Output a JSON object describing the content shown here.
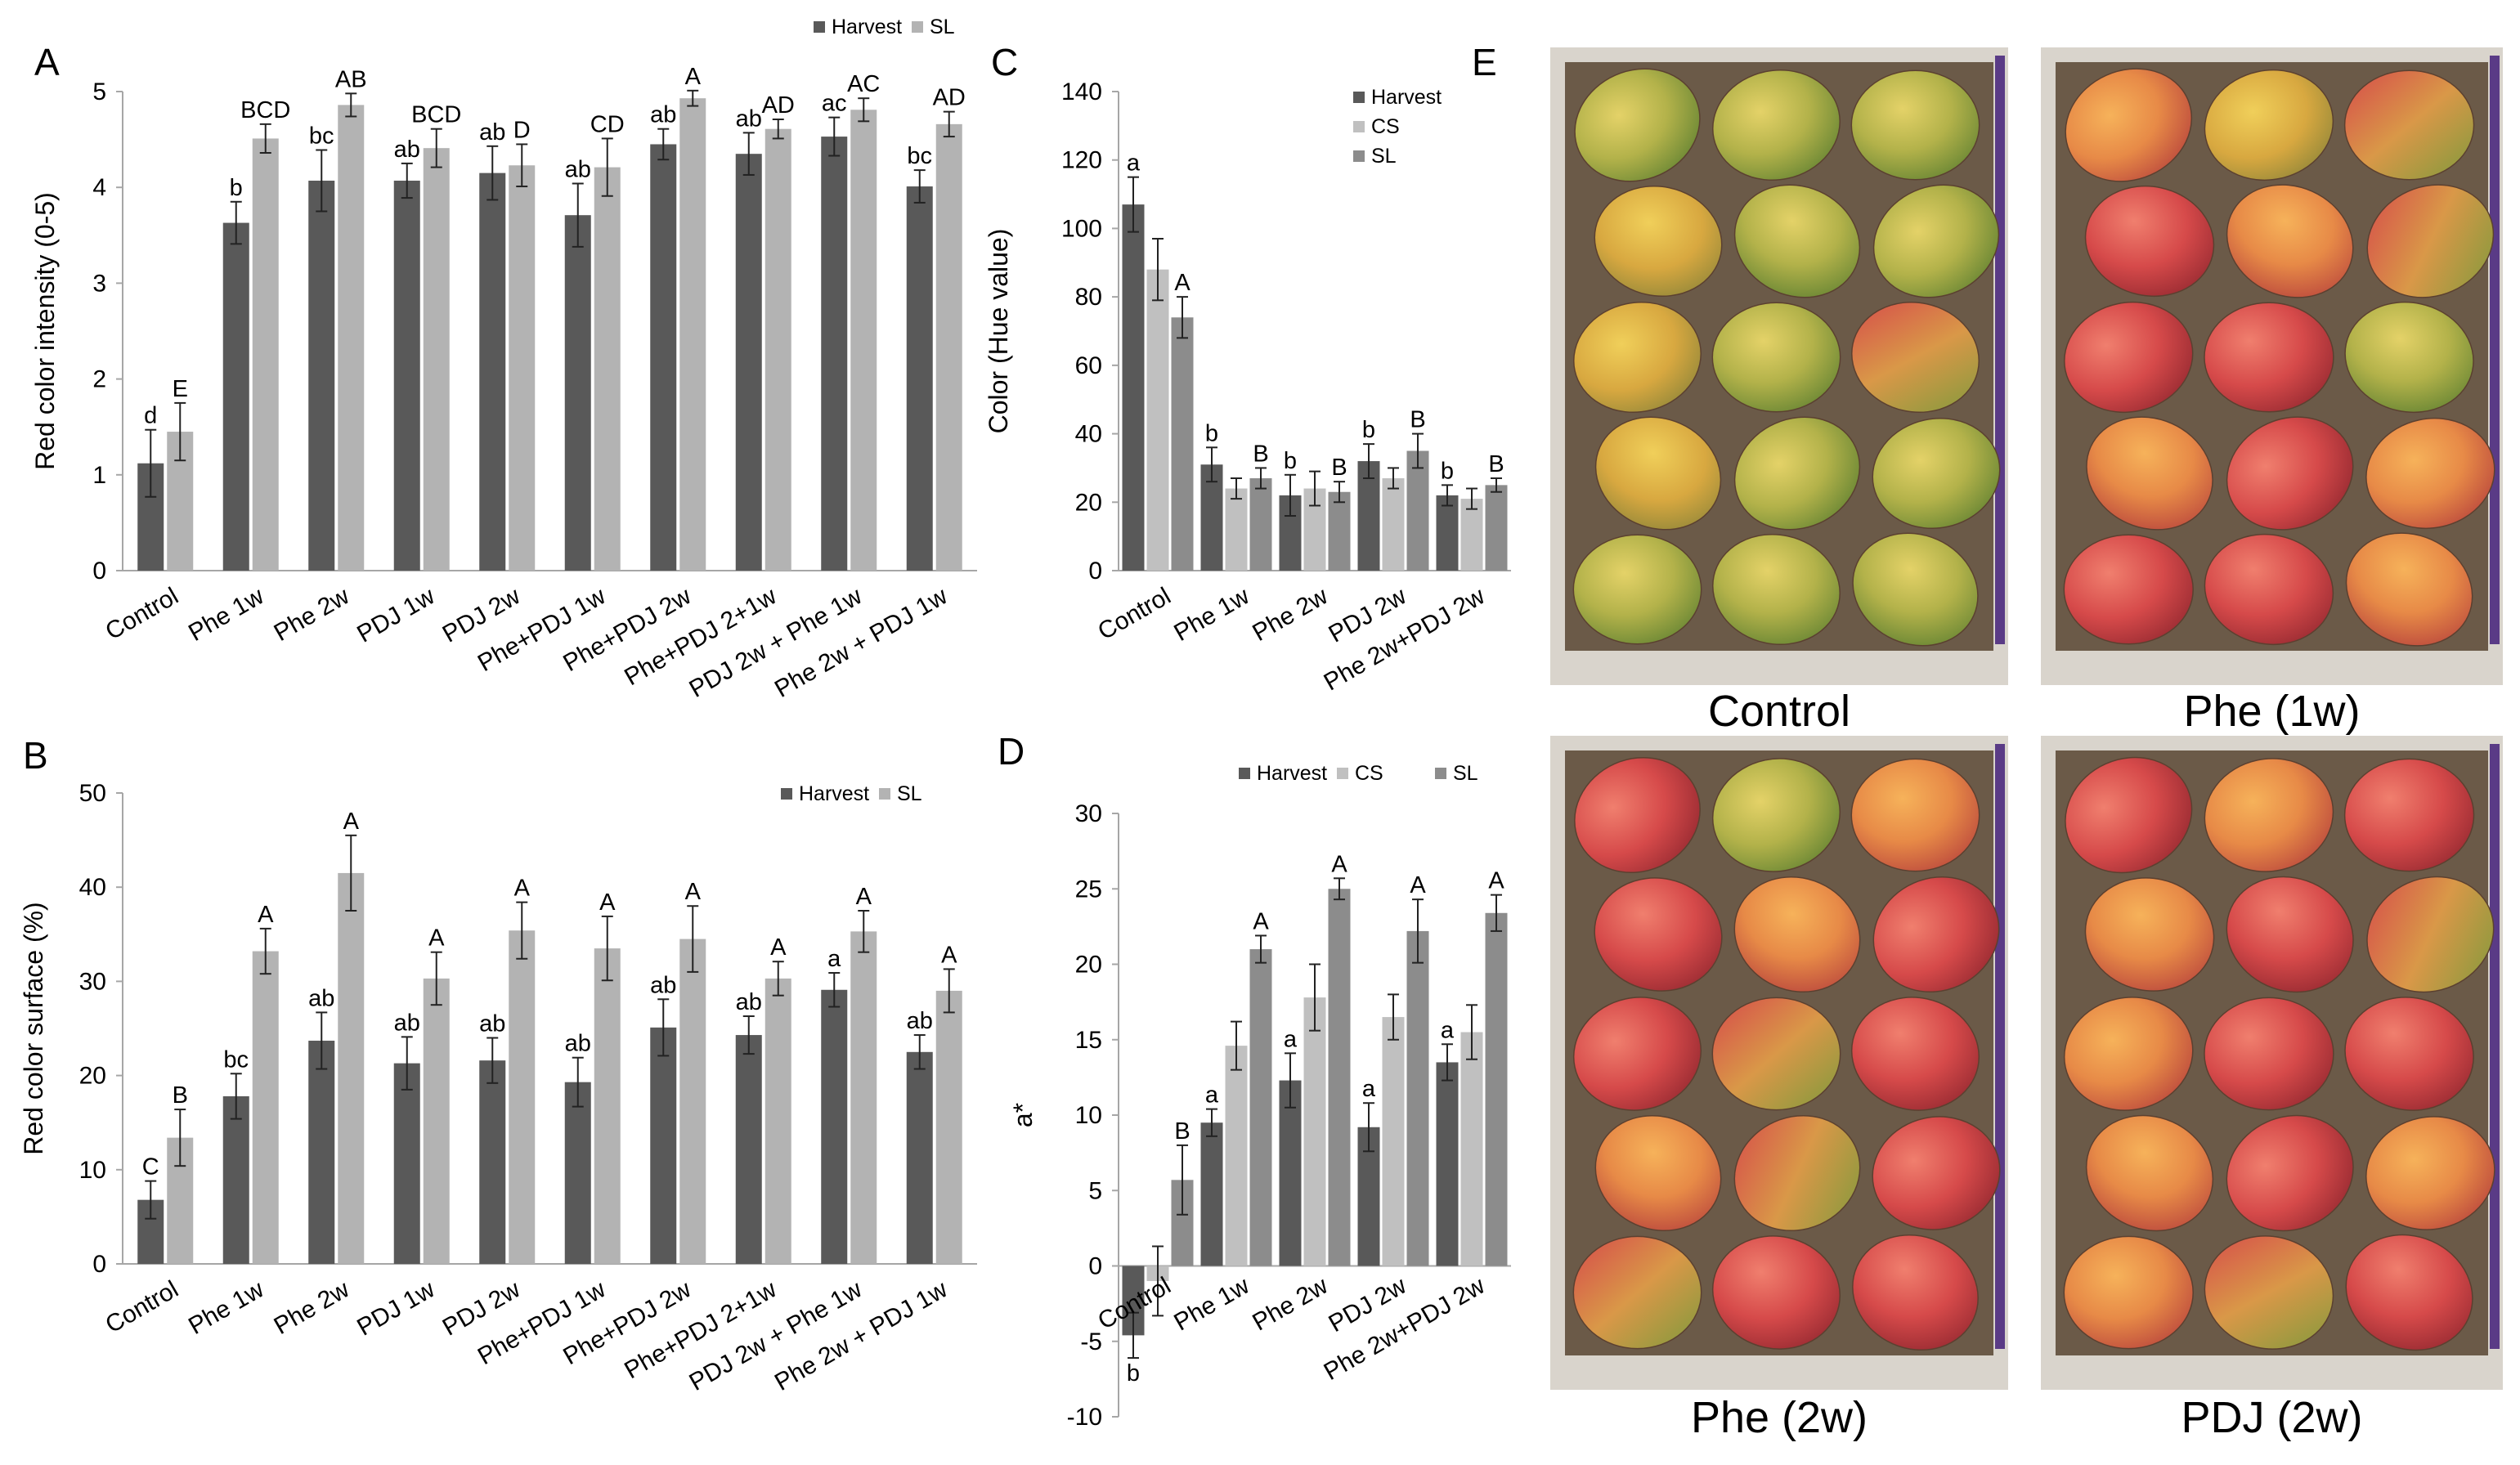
{
  "figure": {
    "photo_panel": {
      "letter": "E",
      "photos": [
        {
          "caption": "Control",
          "tone": "green"
        },
        {
          "caption": "Phe (1w)",
          "tone": "redorange"
        },
        {
          "caption": "Phe (2w)",
          "tone": "redmix"
        },
        {
          "caption": "PDJ (2w)",
          "tone": "redorange2"
        }
      ]
    }
  },
  "colors": {
    "harvest": "#595959",
    "cs": "#c0c0c0",
    "sl_light": "#b3b3b3",
    "sl_mid": "#8c8c8c",
    "axis": "#a6a6a6",
    "box_bg": "#6b5a48"
  },
  "chart_data": [
    {
      "id": "A",
      "type": "bar",
      "ylabel": "Red color intensity (0-5)",
      "ylim": [
        0,
        5
      ],
      "yticks": [
        0,
        1,
        2,
        3,
        4,
        5
      ],
      "legend_position": "top-right",
      "categories": [
        "Control",
        "Phe 1w",
        "Phe 2w",
        "PDJ 1w",
        "PDJ 2w",
        "Phe+PDJ 1w",
        "Phe+PDJ 2w",
        "Phe+PDJ 2+1w",
        "PDJ 2w + Phe 1w",
        "Phe 2w + PDJ 1w"
      ],
      "series": [
        {
          "name": "Harvest",
          "color_key": "harvest",
          "values": [
            1.12,
            3.63,
            4.07,
            4.07,
            4.15,
            3.71,
            4.45,
            4.35,
            4.53,
            4.01
          ],
          "errors": [
            0.35,
            0.22,
            0.32,
            0.18,
            0.28,
            0.33,
            0.16,
            0.22,
            0.2,
            0.17
          ],
          "letters": [
            "d",
            "b",
            "bc",
            "ab",
            "ab",
            "ab",
            "ab",
            "ab",
            "ac",
            "bc"
          ]
        },
        {
          "name": "SL",
          "color_key": "sl_light",
          "values": [
            1.45,
            4.51,
            4.86,
            4.41,
            4.23,
            4.21,
            4.93,
            4.61,
            4.81,
            4.66
          ],
          "errors": [
            0.3,
            0.15,
            0.12,
            0.2,
            0.22,
            0.3,
            0.08,
            0.1,
            0.12,
            0.13
          ],
          "letters": [
            "E",
            "BCD",
            "AB",
            "BCD",
            "D",
            "CD",
            "A",
            "AD",
            "AC",
            "AD"
          ]
        }
      ]
    },
    {
      "id": "B",
      "type": "bar",
      "ylabel": "Red color surface (%)",
      "ylim": [
        0,
        50
      ],
      "yticks": [
        0,
        10,
        20,
        30,
        40,
        50
      ],
      "legend_position": "top-right",
      "categories": [
        "Control",
        "Phe 1w",
        "Phe 2w",
        "PDJ 1w",
        "PDJ 2w",
        "Phe+PDJ 1w",
        "Phe+PDJ 2w",
        "Phe+PDJ 2+1w",
        "PDJ 2w + Phe 1w",
        "Phe 2w + PDJ 1w"
      ],
      "series": [
        {
          "name": "Harvest",
          "color_key": "harvest",
          "values": [
            6.8,
            17.8,
            23.7,
            21.3,
            21.6,
            19.3,
            25.1,
            24.3,
            29.1,
            22.5
          ],
          "errors": [
            2.0,
            2.4,
            3.0,
            2.8,
            2.4,
            2.6,
            3.0,
            2.0,
            1.8,
            1.8
          ],
          "letters": [
            "C",
            "bc",
            "ab",
            "ab",
            "ab",
            "ab",
            "ab",
            "ab",
            "a",
            "ab"
          ]
        },
        {
          "name": "SL",
          "color_key": "sl_light",
          "values": [
            13.4,
            33.2,
            41.5,
            30.3,
            35.4,
            33.5,
            34.5,
            30.3,
            35.3,
            29.0
          ],
          "errors": [
            3.0,
            2.4,
            4.0,
            2.8,
            3.0,
            3.4,
            3.5,
            1.8,
            2.2,
            2.3
          ],
          "letters": [
            "B",
            "A",
            "A",
            "A",
            "A",
            "A",
            "A",
            "A",
            "A",
            "A"
          ]
        }
      ]
    },
    {
      "id": "C",
      "type": "bar",
      "ylabel": "Color (Hue value)",
      "ylim": [
        0,
        140
      ],
      "yticks": [
        0,
        20,
        40,
        60,
        80,
        100,
        120,
        140
      ],
      "legend_position": "top-right",
      "categories": [
        "Control",
        "Phe 1w",
        "Phe 2w",
        "PDJ 2w",
        "Phe 2w+PDJ 2w"
      ],
      "series": [
        {
          "name": "Harvest",
          "color_key": "harvest",
          "values": [
            107,
            31,
            22,
            32,
            22
          ],
          "errors": [
            8,
            5,
            6,
            5,
            3
          ],
          "letters": [
            "a",
            "b",
            "b",
            "b",
            "b"
          ]
        },
        {
          "name": "CS",
          "color_key": "cs",
          "values": [
            88,
            24,
            24,
            27,
            21
          ],
          "errors": [
            9,
            3,
            5,
            3,
            3
          ],
          "letters": [
            "",
            "",
            "",
            "",
            ""
          ]
        },
        {
          "name": "SL",
          "color_key": "sl_mid",
          "values": [
            74,
            27,
            23,
            35,
            25
          ],
          "errors": [
            6,
            3,
            3,
            5,
            2
          ],
          "letters": [
            "A",
            "B",
            "B",
            "B",
            "B"
          ]
        }
      ]
    },
    {
      "id": "D",
      "type": "bar",
      "ylabel": "a*",
      "ylim": [
        -10,
        30
      ],
      "yticks": [
        -10,
        -5,
        0,
        5,
        10,
        15,
        20,
        25,
        30
      ],
      "legend_position": "top-right",
      "categories": [
        "Control",
        "Phe 1w",
        "Phe 2w",
        "PDJ 2w",
        "Phe 2w+PDJ 2w"
      ],
      "series": [
        {
          "name": "Harvest",
          "color_key": "harvest",
          "values": [
            -4.6,
            9.5,
            12.3,
            9.2,
            13.5
          ],
          "errors": [
            1.5,
            0.9,
            1.8,
            1.6,
            1.2
          ],
          "letters": [
            "b",
            "a",
            "a",
            "a",
            "a"
          ]
        },
        {
          "name": "CS",
          "color_key": "cs",
          "values": [
            -1.0,
            14.6,
            17.8,
            16.5,
            15.5
          ],
          "errors": [
            2.3,
            1.6,
            2.2,
            1.5,
            1.8
          ],
          "letters": [
            "",
            "",
            "",
            "",
            ""
          ]
        },
        {
          "name": "SL",
          "color_key": "sl_mid",
          "values": [
            5.7,
            21.0,
            25.0,
            22.2,
            23.4
          ],
          "errors": [
            2.3,
            0.9,
            0.7,
            2.1,
            1.2
          ],
          "letters": [
            "B",
            "A",
            "A",
            "A",
            "A"
          ]
        }
      ]
    }
  ]
}
